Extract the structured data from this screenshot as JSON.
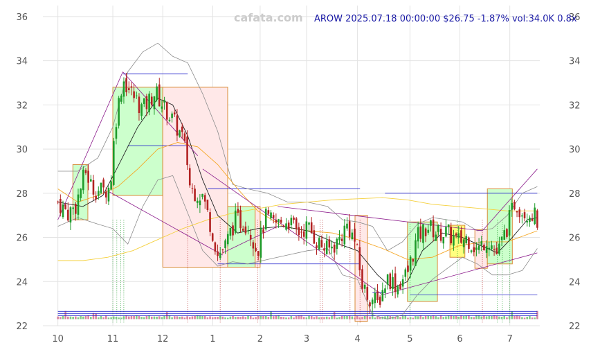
{
  "watermark": "cafata.com",
  "header": "AROW 2025.07.18 00:00:00 $26.75 -1.87% vol:34.0K 0.8x",
  "colors": {
    "up": "#1e9b2a",
    "down": "#b22222",
    "ma_short": "#222222",
    "ma_mid": "#f5a623",
    "ma_long": "#f5d03c",
    "bollinger": "#8c8c8c",
    "trend": "#8b1a8b",
    "level": "#2222cc",
    "box_up": "#ccffcc",
    "box_down": "#ffe8e8",
    "box_yellow": "#ffff80"
  },
  "chart_data": {
    "type": "candlestick",
    "y_ticks": [
      22,
      24,
      26,
      28,
      30,
      32,
      34,
      36
    ],
    "ylim": [
      22,
      36.5
    ],
    "x_tick_labels": [
      "10",
      "11",
      "12",
      "1",
      "2",
      "3",
      "4",
      "5",
      "6",
      "7"
    ],
    "x_tick_month_index": [
      0,
      1.1,
      2.1,
      3.1,
      4.05,
      4.98,
      6.0,
      7.05,
      8.05,
      9.05
    ],
    "xlim": [
      -0.3,
      9.65
    ],
    "close_path": [
      [
        0,
        27.6
      ],
      [
        0.2,
        27.1
      ],
      [
        0.35,
        27.4
      ],
      [
        0.55,
        29.0
      ],
      [
        0.7,
        28.2
      ],
      [
        0.9,
        28.1
      ],
      [
        1.05,
        28.3
      ],
      [
        1.15,
        31.2
      ],
      [
        1.3,
        33.2
      ],
      [
        1.45,
        32.6
      ],
      [
        1.7,
        31.8
      ],
      [
        1.95,
        32.6
      ],
      [
        2.1,
        32.0
      ],
      [
        2.3,
        31.3
      ],
      [
        2.5,
        30.5
      ],
      [
        2.6,
        29.3
      ],
      [
        2.65,
        28.2
      ],
      [
        2.9,
        27.9
      ],
      [
        3.1,
        26.2
      ],
      [
        3.2,
        25.2
      ],
      [
        3.35,
        25.6
      ],
      [
        3.55,
        26.8
      ],
      [
        3.8,
        26.6
      ],
      [
        4.0,
        25.4
      ],
      [
        4.15,
        26.9
      ],
      [
        4.35,
        26.6
      ],
      [
        4.6,
        26.8
      ],
      [
        4.8,
        26.2
      ],
      [
        5.0,
        26.5
      ],
      [
        5.2,
        25.8
      ],
      [
        5.4,
        25.4
      ],
      [
        5.6,
        25.8
      ],
      [
        5.8,
        26.6
      ],
      [
        5.95,
        25.8
      ],
      [
        6.1,
        23.8
      ],
      [
        6.2,
        23.4
      ],
      [
        6.4,
        23.0
      ],
      [
        6.6,
        24.2
      ],
      [
        6.8,
        23.8
      ],
      [
        7.0,
        24.4
      ],
      [
        7.2,
        26.0
      ],
      [
        7.4,
        26.5
      ],
      [
        7.6,
        26.2
      ],
      [
        7.8,
        26.2
      ],
      [
        8.0,
        25.8
      ],
      [
        8.2,
        26.0
      ],
      [
        8.4,
        25.4
      ],
      [
        8.6,
        26.0
      ],
      [
        8.8,
        25.2
      ],
      [
        9.0,
        26.5
      ],
      [
        9.15,
        27.6
      ],
      [
        9.3,
        27.2
      ],
      [
        9.5,
        27.1
      ],
      [
        9.6,
        26.75
      ]
    ],
    "ma_short": [
      [
        0,
        27.6
      ],
      [
        0.5,
        27.4
      ],
      [
        0.9,
        27.9
      ],
      [
        1.2,
        29.2
      ],
      [
        1.6,
        31.0
      ],
      [
        2.0,
        32.3
      ],
      [
        2.3,
        32.0
      ],
      [
        2.6,
        30.6
      ],
      [
        2.9,
        28.6
      ],
      [
        3.2,
        27.0
      ],
      [
        3.6,
        26.2
      ],
      [
        4.0,
        26.4
      ],
      [
        4.5,
        26.5
      ],
      [
        5.0,
        26.3
      ],
      [
        5.5,
        25.8
      ],
      [
        6.0,
        25.4
      ],
      [
        6.4,
        24.3
      ],
      [
        6.7,
        23.7
      ],
      [
        7.0,
        24.0
      ],
      [
        7.3,
        25.4
      ],
      [
        7.7,
        26.2
      ],
      [
        8.1,
        26.0
      ],
      [
        8.5,
        25.6
      ],
      [
        8.8,
        25.3
      ],
      [
        9.1,
        26.0
      ],
      [
        9.4,
        26.8
      ],
      [
        9.6,
        26.9
      ]
    ],
    "ma_mid": [
      [
        0,
        28.2
      ],
      [
        0.4,
        27.6
      ],
      [
        0.8,
        27.9
      ],
      [
        1.2,
        28.3
      ],
      [
        1.6,
        29.1
      ],
      [
        2.0,
        30.0
      ],
      [
        2.4,
        30.3
      ],
      [
        2.8,
        30.1
      ],
      [
        3.2,
        29.3
      ],
      [
        3.6,
        28.2
      ],
      [
        4.0,
        27.2
      ],
      [
        4.5,
        26.5
      ],
      [
        5.0,
        26.3
      ],
      [
        5.5,
        26.2
      ],
      [
        6.0,
        25.9
      ],
      [
        6.5,
        25.5
      ],
      [
        7.0,
        25.0
      ],
      [
        7.5,
        25.1
      ],
      [
        8.0,
        25.6
      ],
      [
        8.5,
        25.8
      ],
      [
        9.0,
        25.8
      ],
      [
        9.6,
        26.3
      ]
    ],
    "ma_long": [
      [
        0,
        24.95
      ],
      [
        0.5,
        24.95
      ],
      [
        1.0,
        25.1
      ],
      [
        1.5,
        25.4
      ],
      [
        2.0,
        25.9
      ],
      [
        2.5,
        26.4
      ],
      [
        3.0,
        26.8
      ],
      [
        3.5,
        27.1
      ],
      [
        4.0,
        27.3
      ],
      [
        4.5,
        27.5
      ],
      [
        5.0,
        27.6
      ],
      [
        5.5,
        27.7
      ],
      [
        6.0,
        27.75
      ],
      [
        6.5,
        27.8
      ],
      [
        7.0,
        27.7
      ],
      [
        7.5,
        27.5
      ],
      [
        8.0,
        27.4
      ],
      [
        8.5,
        27.3
      ],
      [
        9.0,
        27.2
      ],
      [
        9.6,
        27.2
      ]
    ],
    "boll_upper": [
      [
        0,
        29.0
      ],
      [
        0.4,
        29.0
      ],
      [
        0.8,
        29.6
      ],
      [
        1.1,
        31.0
      ],
      [
        1.4,
        33.5
      ],
      [
        1.7,
        34.4
      ],
      [
        2.0,
        34.8
      ],
      [
        2.3,
        34.2
      ],
      [
        2.6,
        33.9
      ],
      [
        2.9,
        32.5
      ],
      [
        3.2,
        30.8
      ],
      [
        3.5,
        28.4
      ],
      [
        3.8,
        28.2
      ],
      [
        4.2,
        28.0
      ],
      [
        4.6,
        27.6
      ],
      [
        5.0,
        27.6
      ],
      [
        5.4,
        27.4
      ],
      [
        5.7,
        26.8
      ],
      [
        6.0,
        26.7
      ],
      [
        6.3,
        26.5
      ],
      [
        6.6,
        25.4
      ],
      [
        6.9,
        25.8
      ],
      [
        7.2,
        26.6
      ],
      [
        7.5,
        26.9
      ],
      [
        7.8,
        26.8
      ],
      [
        8.1,
        26.7
      ],
      [
        8.4,
        26.3
      ],
      [
        8.7,
        26.4
      ],
      [
        9.0,
        27.0
      ],
      [
        9.3,
        28.0
      ],
      [
        9.6,
        28.3
      ]
    ],
    "boll_lower": [
      [
        0,
        26.5
      ],
      [
        0.4,
        26.9
      ],
      [
        0.8,
        26.6
      ],
      [
        1.1,
        26.4
      ],
      [
        1.4,
        25.7
      ],
      [
        1.7,
        27.4
      ],
      [
        2.0,
        28.6
      ],
      [
        2.3,
        28.8
      ],
      [
        2.6,
        27.1
      ],
      [
        2.9,
        25.4
      ],
      [
        3.2,
        24.7
      ],
      [
        3.5,
        24.9
      ],
      [
        3.8,
        24.8
      ],
      [
        4.2,
        25.0
      ],
      [
        4.6,
        25.2
      ],
      [
        5.0,
        25.4
      ],
      [
        5.4,
        25.5
      ],
      [
        5.7,
        24.3
      ],
      [
        6.0,
        24.1
      ],
      [
        6.3,
        22.5
      ],
      [
        6.6,
        22.3
      ],
      [
        6.9,
        22.5
      ],
      [
        7.2,
        23.4
      ],
      [
        7.5,
        24.1
      ],
      [
        7.8,
        24.6
      ],
      [
        8.1,
        25.1
      ],
      [
        8.4,
        24.8
      ],
      [
        8.7,
        24.3
      ],
      [
        9.0,
        24.3
      ],
      [
        9.3,
        24.5
      ],
      [
        9.6,
        25.5
      ]
    ],
    "trend_lines": [
      [
        [
          0,
          26.8
        ],
        [
          1.3,
          33.5
        ]
      ],
      [
        [
          1.3,
          33.5
        ],
        [
          2.8,
          29.7
        ]
      ],
      [
        [
          1.0,
          28.1
        ],
        [
          3.3,
          25.2
        ]
      ],
      [
        [
          3.3,
          25.3
        ],
        [
          4.4,
          26.5
        ]
      ],
      [
        [
          2.9,
          29.1
        ],
        [
          6.5,
          23.4
        ]
      ],
      [
        [
          4.4,
          27.4
        ],
        [
          8.5,
          26.3
        ]
      ],
      [
        [
          6.5,
          23.4
        ],
        [
          9.6,
          25.3
        ]
      ],
      [
        [
          8.5,
          26.3
        ],
        [
          9.6,
          29.1
        ]
      ]
    ],
    "levels": [
      {
        "y": 33.4,
        "x1": 1.3,
        "x2": 2.6
      },
      {
        "y": 30.15,
        "x1": 1.4,
        "x2": 2.6
      },
      {
        "y": 28.2,
        "x1": 3.0,
        "x2": 6.05
      },
      {
        "y": 28.0,
        "x1": 6.55,
        "x2": 9.6
      },
      {
        "y": 24.8,
        "x1": 3.2,
        "x2": 6.05
      },
      {
        "y": 23.5,
        "x1": 6.3,
        "x2": 6.55
      },
      {
        "y": 23.4,
        "x1": 7.05,
        "x2": 9.6
      },
      {
        "y": 22.65,
        "x1": 0,
        "x2": 9.6
      },
      {
        "y": 22.55,
        "x1": 0,
        "x2": 9.6
      },
      {
        "y": 22.45,
        "x1": 0,
        "x2": 9.6
      }
    ],
    "boxes": [
      {
        "x1": 0.3,
        "x2": 0.6,
        "y1": 26.8,
        "y2": 29.3,
        "kind": "up"
      },
      {
        "x1": 1.1,
        "x2": 2.1,
        "y1": 27.9,
        "y2": 32.8,
        "kind": "up"
      },
      {
        "x1": 2.1,
        "x2": 3.4,
        "y1": 24.65,
        "y2": 32.8,
        "kind": "down"
      },
      {
        "x1": 3.4,
        "x2": 3.95,
        "y1": 24.65,
        "y2": 27.4,
        "kind": "up"
      },
      {
        "x1": 3.95,
        "x2": 4.05,
        "y1": 24.65,
        "y2": 27.4,
        "kind": "down"
      },
      {
        "x1": 5.95,
        "x2": 6.2,
        "y1": 22.2,
        "y2": 27.0,
        "kind": "down"
      },
      {
        "x1": 7.0,
        "x2": 7.6,
        "y1": 23.1,
        "y2": 26.7,
        "kind": "up"
      },
      {
        "x1": 7.85,
        "x2": 8.15,
        "y1": 25.1,
        "y2": 26.55,
        "kind": "yellow"
      },
      {
        "x1": 8.35,
        "x2": 8.6,
        "y1": 24.6,
        "y2": 26.35,
        "kind": "down"
      },
      {
        "x1": 8.6,
        "x2": 9.1,
        "y1": 24.8,
        "y2": 28.2,
        "kind": "up"
      }
    ],
    "vlines": [
      {
        "x": 1.1,
        "kind": "up"
      },
      {
        "x": 1.18,
        "kind": "up"
      },
      {
        "x": 1.26,
        "kind": "up"
      },
      {
        "x": 1.32,
        "kind": "up"
      },
      {
        "x": 2.6,
        "kind": "down"
      },
      {
        "x": 3.25,
        "kind": "down"
      },
      {
        "x": 4.0,
        "kind": "down"
      },
      {
        "x": 5.25,
        "kind": "down"
      },
      {
        "x": 5.3,
        "kind": "down"
      },
      {
        "x": 5.85,
        "kind": "down"
      },
      {
        "x": 6.05,
        "kind": "down"
      },
      {
        "x": 7.05,
        "kind": "up"
      },
      {
        "x": 8.0,
        "kind": "up"
      },
      {
        "x": 8.5,
        "kind": "down"
      },
      {
        "x": 8.8,
        "kind": "up"
      },
      {
        "x": 8.9,
        "kind": "up"
      },
      {
        "x": 9.05,
        "kind": "up"
      }
    ]
  }
}
